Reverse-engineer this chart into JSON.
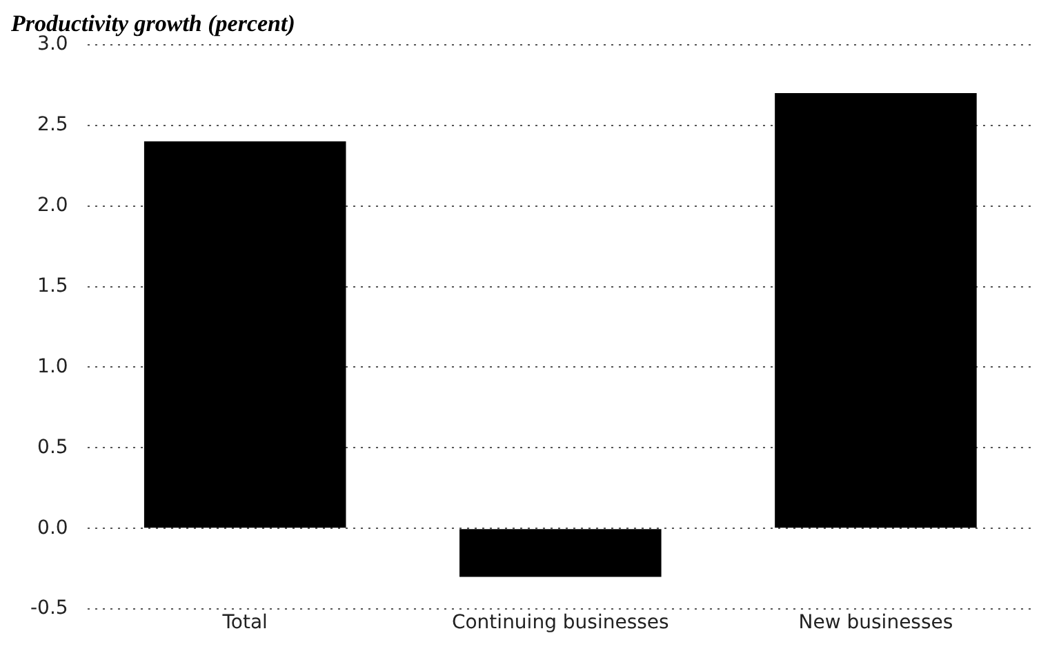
{
  "chart_data": {
    "type": "bar",
    "title": "Productivity growth (percent)",
    "categories": [
      "Total",
      "Continuing businesses",
      "New businesses"
    ],
    "values": [
      2.4,
      -0.3,
      2.7
    ],
    "color": "#000000",
    "ylim": [
      -0.5,
      3.0
    ],
    "yticks": [
      {
        "value": -0.5,
        "label": "-0.5"
      },
      {
        "value": 0,
        "label": "0.0"
      },
      {
        "value": 0.5,
        "label": "0.5"
      },
      {
        "value": 1,
        "label": "1.0"
      },
      {
        "value": 1.5,
        "label": "1.5"
      },
      {
        "value": 2,
        "label": "2.0"
      },
      {
        "value": 2.5,
        "label": "2.5"
      },
      {
        "value": 3,
        "label": "3.0"
      }
    ],
    "grid": "y"
  }
}
